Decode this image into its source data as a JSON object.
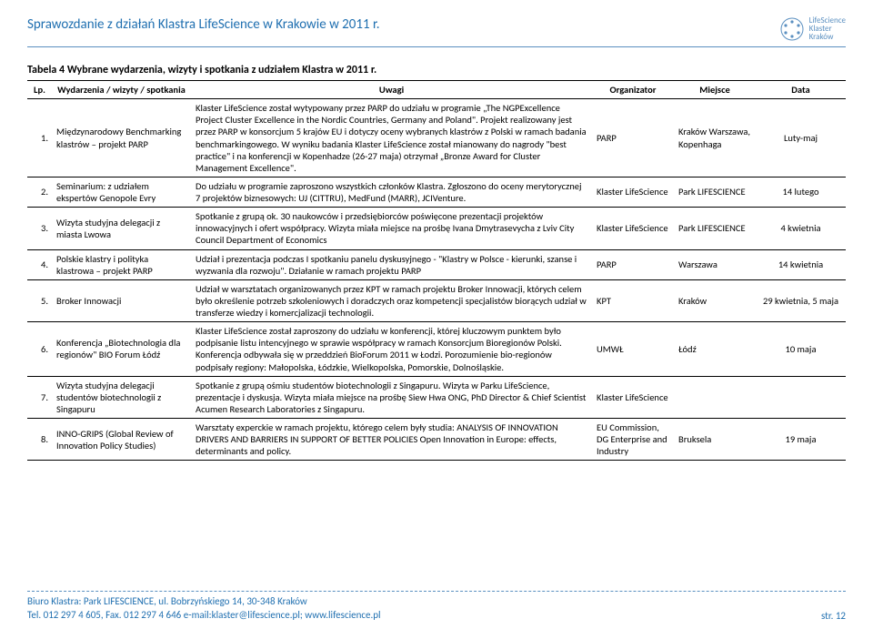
{
  "header": {
    "title": "Sprawozdanie z działań Klastra LifeScience w Krakowie w 2011 r.",
    "logo_lines": [
      "LifeScience",
      "Klaster",
      "Kraków"
    ]
  },
  "caption": "Tabela 4 Wybrane wydarzenia, wizyty i spotkania z udziałem Klastra w 2011 r.",
  "columns": {
    "lp": "Lp.",
    "event": "Wydarzenia / wizyty / spotkania",
    "notes": "Uwagi",
    "org": "Organizator",
    "place": "Miejsce",
    "date": "Data"
  },
  "rows": [
    {
      "lp": "1.",
      "event": "Międzynarodowy Benchmarking klastrów – projekt PARP",
      "notes": "Klaster LifeScience został wytypowany przez PARP do udziału w programie „The NGPExcellence Project Cluster Excellence in the Nordic Countries, Germany and Poland\". Projekt realizowany jest przez PARP w konsorcjum 5 krajów EU i dotyczy oceny wybranych klastrów z Polski w ramach badania benchmarkingowego. W wyniku badania Klaster LifeScience został mianowany do nagrody \"best practice\" i na konferencji w Kopenhadze (26-27 maja) otrzymał „Bronze Award for Cluster Management Excellence\".",
      "org": "PARP",
      "place": "Kraków Warszawa, Kopenhaga",
      "date": "Luty-maj"
    },
    {
      "lp": "2.",
      "event": "Seminarium: z udziałem ekspertów Genopole Evry",
      "notes": "Do udziału w programie zaproszono wszystkich członków Klastra.  Zgłoszono do oceny merytorycznej 7 projektów biznesowych: UJ (CITTRU), MedFund (MARR), JCIVenture.",
      "org": "Klaster LifeScience",
      "place": "Park LIFESCIENCE",
      "date": "14 lutego"
    },
    {
      "lp": "3.",
      "event": "Wizyta studyjna delegacji z miasta Lwowa",
      "notes": "Spotkanie z grupą ok. 30 naukowców i przedsiębiorców poświęcone prezentacji projektów innowacyjnych i ofert współpracy.  Wizyta miała miejsce na prośbę Ivana Dmytrasevycha z Lviv City Council Department of Economics",
      "org": "Klaster LifeScience",
      "place": "Park LIFESCIENCE",
      "date": "4  kwietnia"
    },
    {
      "lp": "4.",
      "event": "Polskie klastry i polityka klastrowa – projekt PARP",
      "notes": "Udział i prezentacja podczas I spotkaniu panelu dyskusyjnego - \"Klastry w Polsce - kierunki, szanse i wyzwania dla rozwoju\".  Działanie w ramach projektu PARP",
      "org": "PARP",
      "place": "Warszawa",
      "date": "14 kwietnia"
    },
    {
      "lp": "5.",
      "event": "Broker Innowacji",
      "notes": "Udział w warsztatach organizowanych przez KPT  w ramach projektu Broker Innowacji, których celem było określenie potrzeb szkoleniowych i doradczych oraz kompetencji specjalistów biorących udział w transferze wiedzy i komercjalizacji technologii.",
      "org": "KPT",
      "place": "Kraków",
      "date": "29 kwietnia, 5 maja"
    },
    {
      "lp": "6.",
      "event": "Konferencja „Biotechnologia dla regionów\" BIO Forum  Łódź",
      "notes": "Klaster LifeScience został zaproszony do udziału w konferencji, której kluczowym punktem było podpisanie listu intencyjnego w sprawie współpracy w ramach Konsorcjum Bioregionów Polski. Konferencja odbywała się w przeddzień BioForum 2011 w Łodzi. Porozumienie bio-regionów podpisały regiony: Małopolska, Łódzkie, Wielkopolska, Pomorskie, Dolnośląskie.",
      "org": "UMWŁ",
      "place": "Łódź",
      "date": "10 maja"
    },
    {
      "lp": "7.",
      "event": "Wizyta studyjna delegacji studentów biotechnologii z Singapuru",
      "notes": "Spotkanie z grupą ośmiu studentów biotechnologii z Singapuru. Wizyta w Parku LifeScience, prezentacje i dyskusja. Wizyta miała miejsce na prośbę Siew Hwa ONG, PhD Director & Chief Scientist Acumen Research Laboratories z Singapuru.",
      "org": "Klaster LifeScience",
      "place": "",
      "date": ""
    },
    {
      "lp": "8.",
      "event": "INNO-GRIPS   (Global Review of Innovation Policy Studies)",
      "notes": "Warsztaty experckie w ramach projektu, którego celem były studia: ANALYSIS OF INNOVATION DRIVERS AND BARRIERS IN SUPPORT OF BETTER POLICIES Open Innovation in Europe: effects, determinants and policy.",
      "org": "EU Commission, DG Enterprise and Industry",
      "place": "Bruksela",
      "date": "19 maja"
    }
  ],
  "footer": {
    "line1": "Biuro Klastra: Park LIFESCIENCE, ul. Bobrzyńskiego 14, 30-348 Kraków",
    "line2": "Tel. 012 297 4 605, Fax. 012 297 4 646 e-mail:klaster@lifescience.pl; www.lifescience.pl",
    "page": "str. 12"
  },
  "colors": {
    "accent": "#1f6fb0",
    "rule": "#5a8fc0"
  }
}
